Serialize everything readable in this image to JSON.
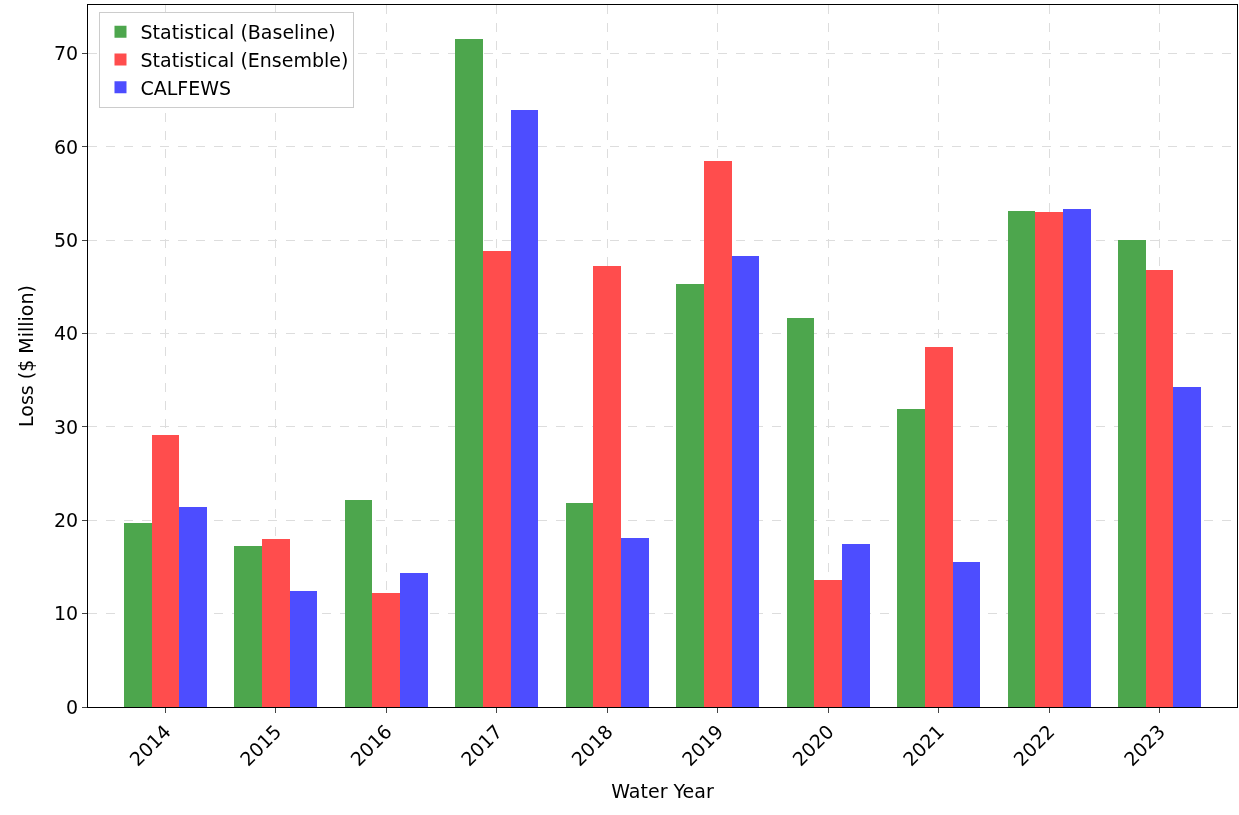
{
  "chart_data": {
    "type": "bar",
    "xlabel": "Water Year",
    "ylabel": "Loss ($ Million)",
    "categories": [
      "2014",
      "2015",
      "2016",
      "2017",
      "2018",
      "2019",
      "2020",
      "2021",
      "2022",
      "2023"
    ],
    "series": [
      {
        "name": "Statistical (Baseline)",
        "color": "#4da64d",
        "values": [
          19.7,
          17.2,
          22.2,
          71.6,
          21.9,
          45.3,
          41.7,
          31.9,
          53.1,
          50.0
        ]
      },
      {
        "name": "Statistical (Ensemble)",
        "color": "#ff4d4d",
        "values": [
          29.1,
          18.0,
          12.2,
          48.8,
          47.2,
          58.5,
          13.6,
          38.6,
          53.0,
          46.8
        ]
      },
      {
        "name": "CALFEWS",
        "color": "#4d4dff",
        "values": [
          21.4,
          12.4,
          14.4,
          63.9,
          18.1,
          48.3,
          17.5,
          15.5,
          53.3,
          34.3
        ]
      }
    ],
    "ylim": [
      0,
      75.2
    ],
    "yticks": [
      0,
      10,
      20,
      30,
      40,
      50,
      60,
      70
    ],
    "grid": true,
    "legend": "top left"
  }
}
